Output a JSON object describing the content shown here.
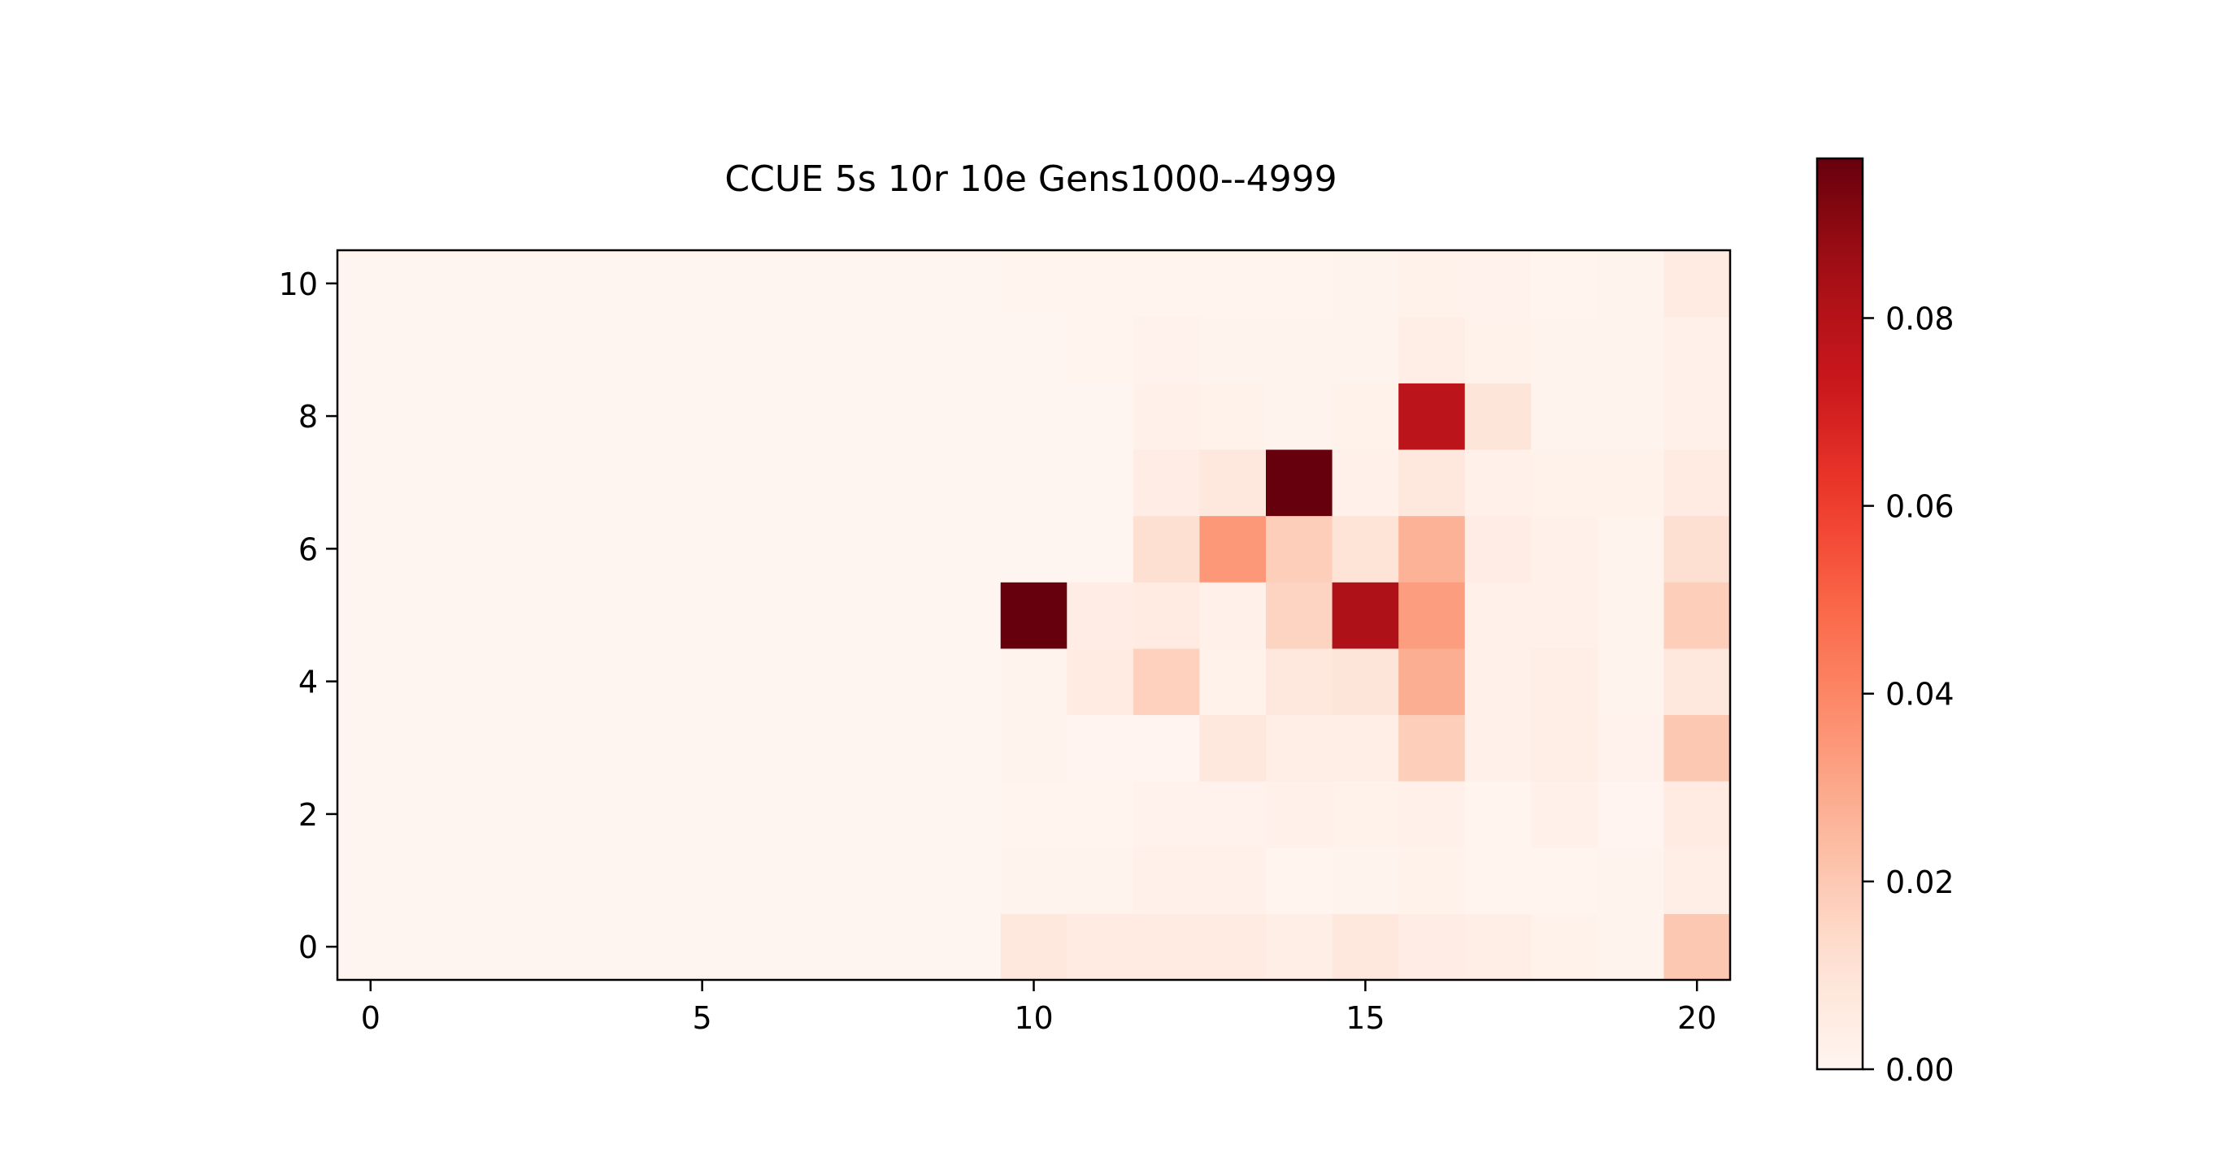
{
  "chart_data": {
    "type": "heatmap",
    "title": "CCUE 5s 10r 10e Gens1000--4999",
    "xlabel": "",
    "ylabel": "",
    "colormap": "Reds",
    "xlim": [
      -0.5,
      20.5
    ],
    "ylim": [
      -0.5,
      10.5
    ],
    "x_ticks": [
      0,
      5,
      10,
      15,
      20
    ],
    "x_tick_labels": [
      "0",
      "5",
      "10",
      "15",
      "20"
    ],
    "y_ticks": [
      0,
      2,
      4,
      6,
      8,
      10
    ],
    "y_tick_labels": [
      "0",
      "2",
      "4",
      "6",
      "8",
      "10"
    ],
    "colorbar": {
      "min": 0.0,
      "max": 0.097,
      "ticks": [
        0.0,
        0.02,
        0.04,
        0.06,
        0.08
      ],
      "tick_labels": [
        "0.00",
        "0.02",
        "0.04",
        "0.06",
        "0.08"
      ]
    },
    "grid": false,
    "z": [
      [
        0,
        0,
        0,
        0,
        0,
        0,
        0,
        0,
        0,
        0,
        0.008,
        0.006,
        0.006,
        0.006,
        0.004,
        0.008,
        0.005,
        0.004,
        0.002,
        0.001,
        0.02
      ],
      [
        0,
        0,
        0,
        0,
        0,
        0,
        0,
        0,
        0,
        0,
        0.0012,
        0.0012,
        0.003,
        0.003,
        0.0008,
        0.0012,
        0.002,
        0.0008,
        0.0008,
        0.0012,
        0.004
      ],
      [
        0,
        0,
        0,
        0,
        0,
        0,
        0,
        0,
        0,
        0,
        0.0008,
        0.0008,
        0.0015,
        0.0015,
        0.003,
        0.002,
        0.003,
        0.0008,
        0.003,
        0.0005,
        0.006
      ],
      [
        0,
        0,
        0,
        0,
        0,
        0,
        0,
        0,
        0,
        0,
        0.001,
        0.0005,
        0.0005,
        0.008,
        0.004,
        0.004,
        0.018,
        0.003,
        0.004,
        0.0015,
        0.02
      ],
      [
        0,
        0,
        0,
        0,
        0,
        0,
        0,
        0,
        0,
        0,
        0.001,
        0.006,
        0.017,
        0.002,
        0.008,
        0.009,
        0.028,
        0.003,
        0.004,
        0.001,
        0.008
      ],
      [
        0,
        0,
        0,
        0,
        0,
        0,
        0,
        0,
        0,
        0,
        0.097,
        0.005,
        0.006,
        0.003,
        0.016,
        0.082,
        0.033,
        0.003,
        0.003,
        0.001,
        0.018
      ],
      [
        0,
        0,
        0,
        0,
        0,
        0,
        0,
        0,
        0,
        0,
        0,
        0,
        0.012,
        0.035,
        0.018,
        0.01,
        0.027,
        0.005,
        0.003,
        0.001,
        0.012
      ],
      [
        0,
        0,
        0,
        0,
        0,
        0,
        0,
        0,
        0,
        0,
        0,
        0,
        0.005,
        0.008,
        0.097,
        0.003,
        0.008,
        0.003,
        0.002,
        0.002,
        0.006
      ],
      [
        0,
        0,
        0,
        0,
        0,
        0,
        0,
        0,
        0,
        0,
        0,
        0,
        0.003,
        0.002,
        0.001,
        0.002,
        0.078,
        0.009,
        0.001,
        0.001,
        0.003
      ],
      [
        0,
        0,
        0,
        0,
        0,
        0,
        0,
        0,
        0,
        0,
        0,
        0.0008,
        0.0015,
        0.001,
        0.001,
        0.0012,
        0.004,
        0.002,
        0.001,
        0.001,
        0.003
      ],
      [
        0,
        0,
        0,
        0,
        0,
        0,
        0,
        0,
        0,
        0,
        0.0008,
        0.0008,
        0.0008,
        0.0008,
        0.0008,
        0.001,
        0.002,
        0.0015,
        0.0008,
        0.0012,
        0.006
      ]
    ]
  }
}
